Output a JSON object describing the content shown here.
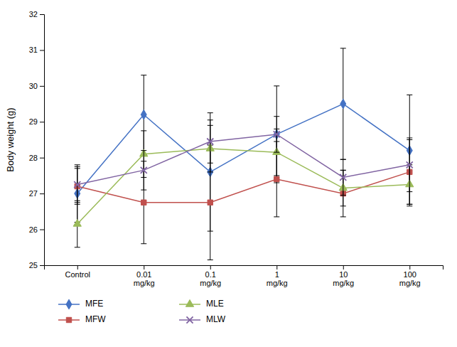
{
  "chart_data": {
    "type": "line",
    "categories": [
      "Control",
      "0.01\nmg/kg",
      "0.1\nmg/kg",
      "1\nmg/kg",
      "10\nmg/kg",
      "100\nmg/kg"
    ],
    "series": [
      {
        "name": "MFE",
        "color": "#4472C4",
        "marker": "diamond",
        "line_style": "solid",
        "values": [
          27.0,
          29.2,
          27.6,
          28.65,
          29.5,
          28.2
        ],
        "errors": [
          0.8,
          1.1,
          1.65,
          1.35,
          1.55,
          1.55
        ]
      },
      {
        "name": "MFW",
        "color": "#C0504D",
        "marker": "square",
        "line_style": "solid",
        "values": [
          27.2,
          26.75,
          26.75,
          27.4,
          27.0,
          27.6
        ],
        "errors": [
          0.5,
          1.15,
          1.6,
          1.05,
          0.65,
          0.9
        ]
      },
      {
        "name": "MLE",
        "color": "#9BBB59",
        "marker": "triangle",
        "line_style": "solid",
        "values": [
          26.15,
          28.1,
          28.25,
          28.15,
          27.15,
          27.25
        ],
        "errors": [
          0.65,
          0.65,
          0.65,
          0.65,
          0.5,
          0.55
        ]
      },
      {
        "name": "MLW",
        "color": "#8064A2",
        "marker": "x",
        "line_style": "solid",
        "values": [
          27.25,
          27.65,
          28.45,
          28.65,
          27.45,
          27.8
        ],
        "errors": [
          0.5,
          0.55,
          0.6,
          0.5,
          0.5,
          0.75
        ]
      }
    ],
    "ylabel": "Body weight (g)",
    "ylim": [
      25,
      32
    ],
    "yticks": [
      25,
      26,
      27,
      28,
      29,
      30,
      31,
      32
    ],
    "grid": false,
    "legend": "bottom"
  }
}
